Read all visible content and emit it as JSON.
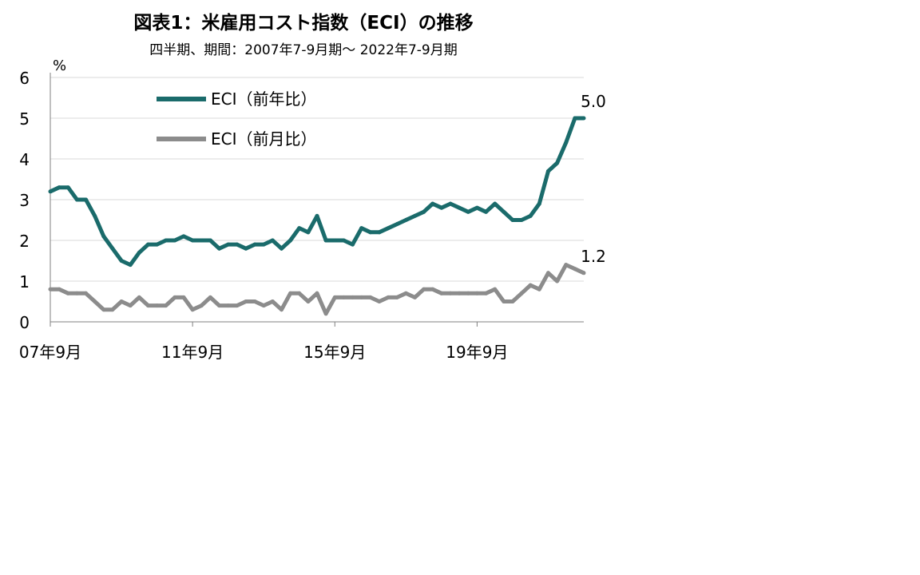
{
  "chart_data": {
    "type": "line",
    "title": "図表1：米雇用コスト指数（ECI）の推移",
    "subtitle": "四半期、期間：2007年7-9月期～ 2022年7-9月期",
    "ylabel": "%",
    "ylim": [
      0,
      6
    ],
    "yticks": [
      "0",
      "1",
      "2",
      "3",
      "4",
      "5",
      "6"
    ],
    "grid": true,
    "legend_position": "top-left",
    "x_tick_labels": [
      {
        "index": 0,
        "label": "07年9月"
      },
      {
        "index": 16,
        "label": "11年9月"
      },
      {
        "index": 32,
        "label": "15年9月"
      },
      {
        "index": 48,
        "label": "19年9月"
      }
    ],
    "x": [
      "2007Q3",
      "2007Q4",
      "2008Q1",
      "2008Q2",
      "2008Q3",
      "2008Q4",
      "2009Q1",
      "2009Q2",
      "2009Q3",
      "2009Q4",
      "2010Q1",
      "2010Q2",
      "2010Q3",
      "2010Q4",
      "2011Q1",
      "2011Q2",
      "2011Q3",
      "2011Q4",
      "2012Q1",
      "2012Q2",
      "2012Q3",
      "2012Q4",
      "2013Q1",
      "2013Q2",
      "2013Q3",
      "2013Q4",
      "2014Q1",
      "2014Q2",
      "2014Q3",
      "2014Q4",
      "2015Q1",
      "2015Q2",
      "2015Q3",
      "2015Q4",
      "2016Q1",
      "2016Q2",
      "2016Q3",
      "2016Q4",
      "2017Q1",
      "2017Q2",
      "2017Q3",
      "2017Q4",
      "2018Q1",
      "2018Q2",
      "2018Q3",
      "2018Q4",
      "2019Q1",
      "2019Q2",
      "2019Q3",
      "2019Q4",
      "2020Q1",
      "2020Q2",
      "2020Q3",
      "2020Q4",
      "2021Q1",
      "2021Q2",
      "2021Q3",
      "2021Q4",
      "2022Q1",
      "2022Q2",
      "2022Q3"
    ],
    "series": [
      {
        "name": "ECI（前年比）",
        "color": "#1a6b6b",
        "end_label": "5.0",
        "values": [
          3.2,
          3.3,
          3.3,
          3.0,
          3.0,
          2.6,
          2.1,
          1.8,
          1.5,
          1.4,
          1.7,
          1.9,
          1.9,
          2.0,
          2.0,
          2.1,
          2.0,
          2.0,
          2.0,
          1.8,
          1.9,
          1.9,
          1.8,
          1.9,
          1.9,
          2.0,
          1.8,
          2.0,
          2.3,
          2.2,
          2.6,
          2.0,
          2.0,
          2.0,
          1.9,
          2.3,
          2.2,
          2.2,
          2.3,
          2.4,
          2.5,
          2.6,
          2.7,
          2.9,
          2.8,
          2.9,
          2.8,
          2.7,
          2.8,
          2.7,
          2.9,
          2.7,
          2.5,
          2.5,
          2.6,
          2.9,
          3.7,
          3.9,
          4.4,
          5.0,
          5.0
        ]
      },
      {
        "name": "ECI（前月比）",
        "color": "#8c8c8c",
        "end_label": "1.2",
        "values": [
          0.8,
          0.8,
          0.7,
          0.7,
          0.7,
          0.5,
          0.3,
          0.3,
          0.5,
          0.4,
          0.6,
          0.4,
          0.4,
          0.4,
          0.6,
          0.6,
          0.3,
          0.4,
          0.6,
          0.4,
          0.4,
          0.4,
          0.5,
          0.5,
          0.4,
          0.5,
          0.3,
          0.7,
          0.7,
          0.5,
          0.7,
          0.2,
          0.6,
          0.6,
          0.6,
          0.6,
          0.6,
          0.5,
          0.6,
          0.6,
          0.7,
          0.6,
          0.8,
          0.8,
          0.7,
          0.7,
          0.7,
          0.7,
          0.7,
          0.7,
          0.8,
          0.5,
          0.5,
          0.7,
          0.9,
          0.8,
          1.2,
          1.0,
          1.4,
          1.3,
          1.2
        ]
      }
    ]
  }
}
